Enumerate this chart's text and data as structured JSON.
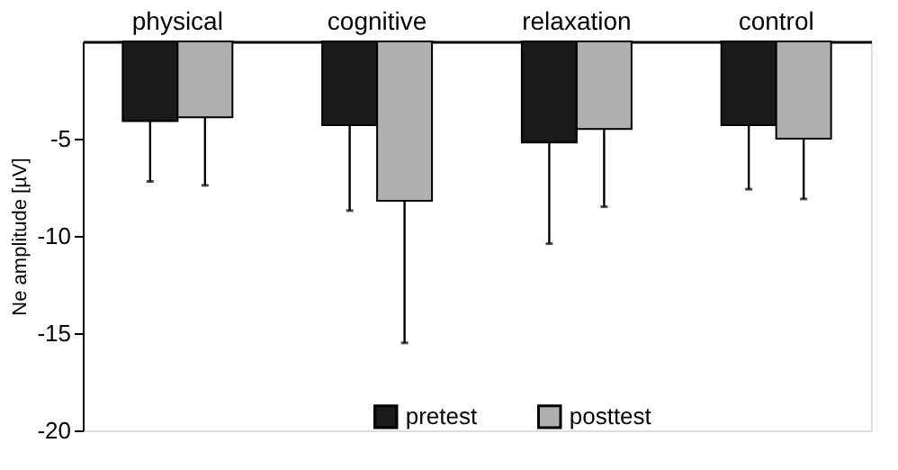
{
  "chart_data": {
    "type": "bar",
    "ylabel": "Ne amplitude [µV]",
    "categories": [
      "physical",
      "cognitive",
      "relaxation",
      "control"
    ],
    "series": [
      {
        "name": "pretest",
        "color": "#1a1a1a",
        "values": [
          -4.1,
          -4.3,
          -5.2,
          -4.3
        ],
        "errors": [
          [
            -7.2,
            -4.1
          ],
          [
            -8.7,
            -4.3
          ],
          [
            -10.4,
            -5.2
          ],
          [
            -7.6,
            -4.3
          ]
        ]
      },
      {
        "name": "posttest",
        "color": "#b0b0b0",
        "values": [
          -3.9,
          -8.2,
          -4.5,
          -5.0
        ],
        "errors": [
          [
            -7.4,
            -3.9
          ],
          [
            -15.5,
            -8.2
          ],
          [
            -8.5,
            -4.5
          ],
          [
            -8.1,
            -5.0
          ]
        ]
      }
    ],
    "ylim": [
      -20,
      0
    ],
    "yticks": [
      -5,
      -10,
      -15,
      -20
    ],
    "grid": false,
    "legend": "bottom"
  }
}
